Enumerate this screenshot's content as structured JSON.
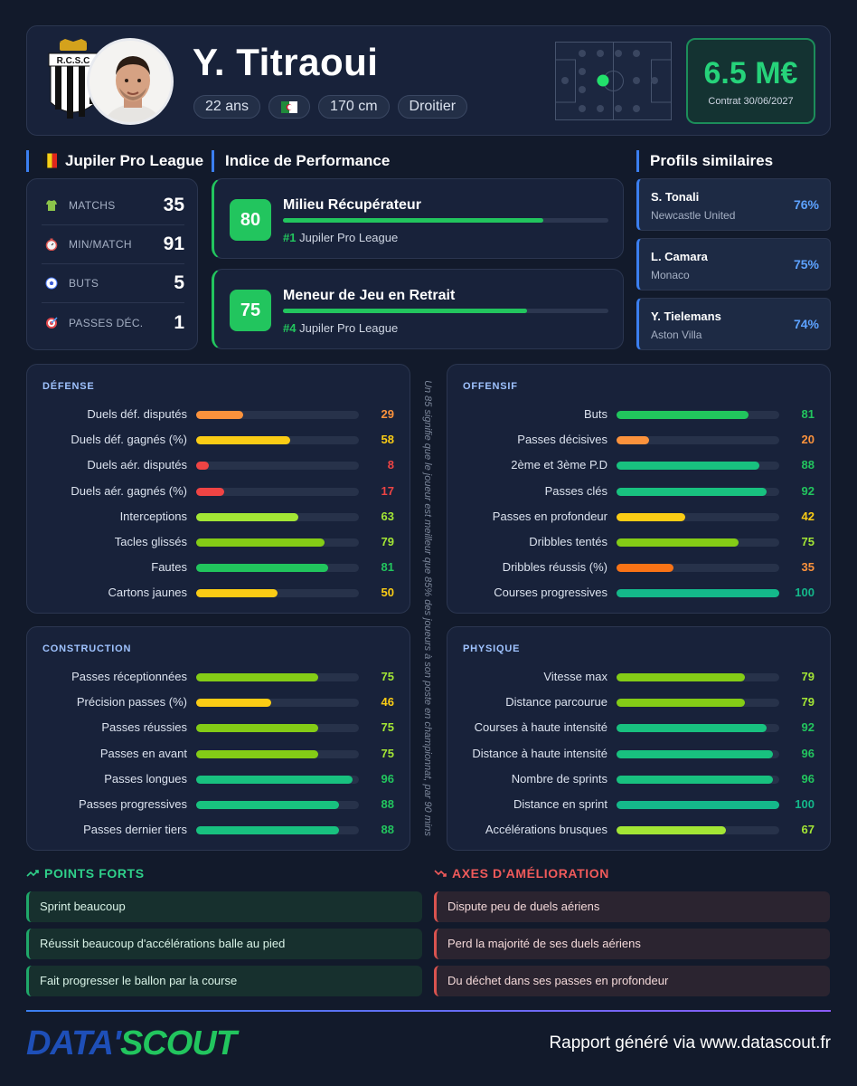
{
  "player": {
    "name": "Y. Titraoui",
    "club_logo_text": "R.C.S.C",
    "tags": [
      "22 ans",
      "170 cm",
      "Droitier"
    ],
    "value": "6.5 M€",
    "contract": "Contrat 30/06/2027"
  },
  "sections": {
    "league": "Jupiler Pro League",
    "performance": "Indice de Performance",
    "similar": "Profils similaires"
  },
  "stats": [
    {
      "label": "MATCHS",
      "value": "35",
      "icon": "shirt-icon"
    },
    {
      "label": "MIN/MATCH",
      "value": "91",
      "icon": "stopwatch-icon"
    },
    {
      "label": "BUTS",
      "value": "5",
      "icon": "ball-icon"
    },
    {
      "label": "PASSES DÉC.",
      "value": "1",
      "icon": "target-icon"
    }
  ],
  "performance": [
    {
      "score": "80",
      "title": "Milieu Récupérateur",
      "rank": "#1",
      "league": "Jupiler Pro League",
      "level": 80
    },
    {
      "score": "75",
      "title": "Meneur de Jeu en Retrait",
      "rank": "#4",
      "league": "Jupiler Pro League",
      "level": 75
    }
  ],
  "similar": [
    {
      "name": "S. Tonali",
      "club": "Newcastle United",
      "pct": "76%"
    },
    {
      "name": "L. Camara",
      "club": "Monaco",
      "pct": "75%"
    },
    {
      "name": "Y. Tielemans",
      "club": "Aston Villa",
      "pct": "74%"
    }
  ],
  "metrics": {
    "defense": {
      "title": "DÉFENSE",
      "rows": [
        {
          "label": "Duels déf. disputés",
          "value": 29
        },
        {
          "label": "Duels déf. gagnés (%)",
          "value": 58
        },
        {
          "label": "Duels aér. disputés",
          "value": 8
        },
        {
          "label": "Duels aér. gagnés (%)",
          "value": 17
        },
        {
          "label": "Interceptions",
          "value": 63
        },
        {
          "label": "Tacles glissés",
          "value": 79
        },
        {
          "label": "Fautes",
          "value": 81
        },
        {
          "label": "Cartons jaunes",
          "value": 50
        }
      ]
    },
    "offensive": {
      "title": "OFFENSIF",
      "rows": [
        {
          "label": "Buts",
          "value": 81
        },
        {
          "label": "Passes décisives",
          "value": 20
        },
        {
          "label": "2ème et 3ème P.D",
          "value": 88
        },
        {
          "label": "Passes clés",
          "value": 92
        },
        {
          "label": "Passes en profondeur",
          "value": 42
        },
        {
          "label": "Dribbles tentés",
          "value": 75
        },
        {
          "label": "Dribbles réussis (%)",
          "value": 35
        },
        {
          "label": "Courses progressives",
          "value": 100
        }
      ]
    },
    "construction": {
      "title": "CONSTRUCTION",
      "rows": [
        {
          "label": "Passes réceptionnées",
          "value": 75
        },
        {
          "label": "Précision passes (%)",
          "value": 46
        },
        {
          "label": "Passes réussies",
          "value": 75
        },
        {
          "label": "Passes en avant",
          "value": 75
        },
        {
          "label": "Passes longues",
          "value": 96
        },
        {
          "label": "Passes progressives",
          "value": 88
        },
        {
          "label": "Passes dernier tiers",
          "value": 88
        }
      ]
    },
    "physical": {
      "title": "PHYSIQUE",
      "rows": [
        {
          "label": "Vitesse max",
          "value": 79
        },
        {
          "label": "Distance parcourue",
          "value": 79
        },
        {
          "label": "Courses à haute intensité",
          "value": 92
        },
        {
          "label": "Distance à haute intensité",
          "value": 96
        },
        {
          "label": "Nombre de sprints",
          "value": 96
        },
        {
          "label": "Distance en sprint",
          "value": 100
        },
        {
          "label": "Accélérations brusques",
          "value": 67
        }
      ]
    }
  },
  "note": "Un 85 signifie que le joueur est meilleur que 85% des joueurs à son poste en championnat, par 90 mins",
  "strengths": {
    "title": "POINTS FORTS",
    "items": [
      "Sprint beaucoup",
      "Réussit beaucoup d'accélérations balle au pied",
      "Fait progresser le ballon par la course"
    ]
  },
  "weaknesses": {
    "title": "AXES D'AMÉLIORATION",
    "items": [
      "Dispute peu de duels aériens",
      "Perd la majorité de ses duels aériens",
      "Du déchet dans ses passes en profondeur"
    ]
  },
  "footer": {
    "brand_part1": "DATA'",
    "brand_part2": "SCOUT",
    "text": "Rapport généré via www.datascout.fr"
  },
  "colors": {
    "accent_green": "#22c55e",
    "accent_blue": "#3b7ff0",
    "bad_red": "#d9534f"
  }
}
